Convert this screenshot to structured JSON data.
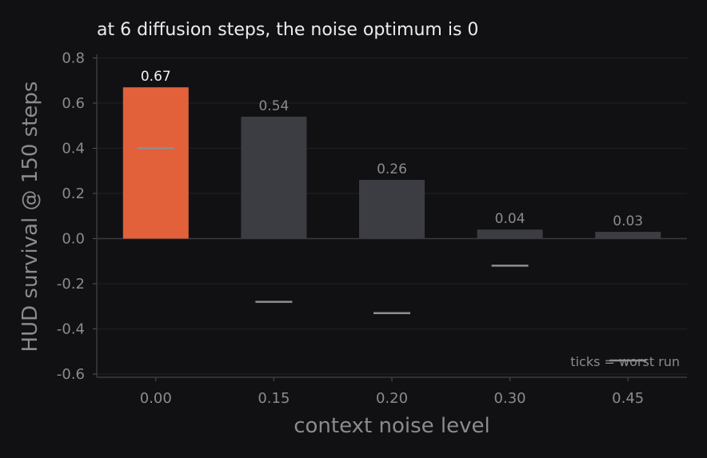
{
  "chart_data": {
    "type": "bar",
    "title": "at 6 diffusion steps, the noise optimum is 0",
    "xlabel": "context noise level",
    "ylabel": "HUD survival @ 150 steps",
    "categories": [
      "0.00",
      "0.15",
      "0.20",
      "0.30",
      "0.45"
    ],
    "values": [
      0.67,
      0.54,
      0.26,
      0.04,
      0.03
    ],
    "value_labels": [
      "0.67",
      "0.54",
      "0.26",
      "0.04",
      "0.03"
    ],
    "worst_run": [
      0.4,
      -0.28,
      -0.33,
      -0.12,
      -0.54
    ],
    "highlight_index": 0,
    "ylim": [
      -0.62,
      0.82
    ],
    "yticks": [
      0.8,
      0.6,
      0.4,
      0.2,
      0.0,
      -0.2,
      -0.4,
      -0.6
    ],
    "ytick_labels": [
      "0.8",
      "0.6",
      "0.4",
      "0.2",
      "0.0",
      "-0.2",
      "-0.4",
      "-0.6"
    ],
    "grid": true,
    "annotation": "ticks = worst run",
    "colors": {
      "highlight_bar": "#e2603a",
      "bar": "#3c3c43",
      "worst_tick": "#8e8e93",
      "highlight_label": "#f2f2f2",
      "label": "#8b8b8f"
    }
  }
}
